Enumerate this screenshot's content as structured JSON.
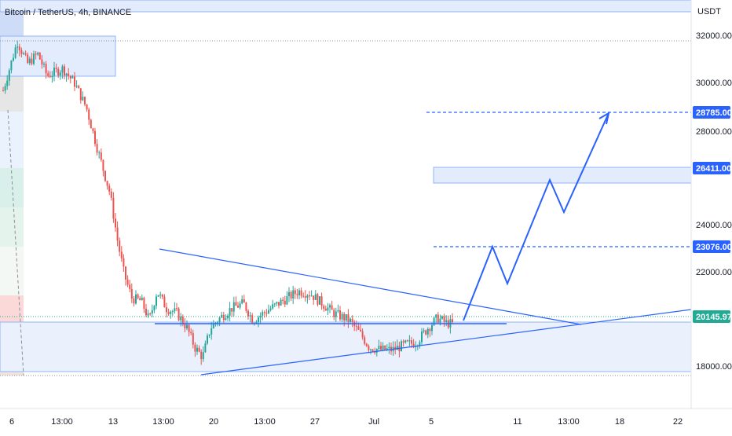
{
  "header": {
    "title": "Bitcoin / TetherUS, 4h, BINANCE"
  },
  "axis": {
    "unit": "USDT",
    "y_ticks": [
      "32000.00",
      "30000.00",
      "28000.00",
      "24000.00",
      "22000.00",
      "18000.00"
    ],
    "x_ticks": [
      "6",
      "13:00",
      "13",
      "13:00",
      "20",
      "13:00",
      "27",
      "Jul",
      "5",
      "11",
      "13:00",
      "18",
      "22"
    ]
  },
  "price_badges": [
    {
      "label": "28785.00",
      "color": "#2962ff"
    },
    {
      "label": "26411.00",
      "color": "#2962ff"
    },
    {
      "label": "23076.00",
      "color": "#2962ff"
    },
    {
      "label": "20145.97",
      "color": "#22ab94"
    }
  ],
  "colors": {
    "up": "#26a69a",
    "down": "#ef5350",
    "drawing": "#2962ff",
    "zone_fill": "#e3ecfd",
    "zone_stroke": "#90b4f5"
  },
  "chart_data": {
    "type": "candlestick",
    "symbol": "Bitcoin / TetherUS",
    "timeframe": "4h",
    "exchange": "BINANCE",
    "y_unit": "USDT",
    "ylim": [
      16700,
      33400
    ],
    "approx_close_path": [
      {
        "x": "6",
        "price": 29700
      },
      {
        "x": "13:00",
        "price": 30300
      },
      {
        "x": "13",
        "price": 26500
      },
      {
        "x": "13:00",
        "price": 20700
      },
      {
        "x": "20",
        "price": 19000
      },
      {
        "x": "13:00",
        "price": 20600
      },
      {
        "x": "27",
        "price": 21100
      },
      {
        "x": "Jul",
        "price": 19000
      },
      {
        "x": "5",
        "price": 20150
      }
    ],
    "projected_path": [
      20100,
      23000,
      21500,
      25950,
      24500,
      28700
    ],
    "horizontal_levels": [
      28785.0,
      26411.0,
      23076.0,
      20145.97
    ]
  }
}
